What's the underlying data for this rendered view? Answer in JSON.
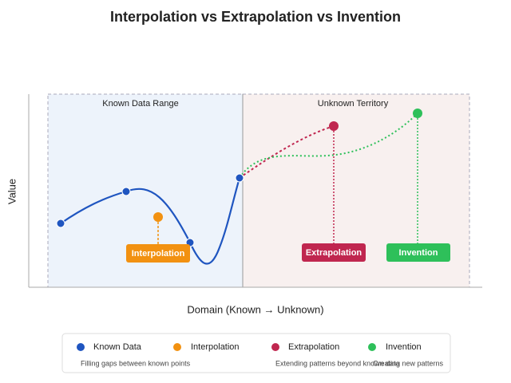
{
  "title": "Interpolation vs Extrapolation vs Invention",
  "regions": {
    "known": "Known Data Range",
    "unknown": "Unknown Territory"
  },
  "axes": {
    "y": "Value",
    "x": "Domain (Known → Unknown)"
  },
  "callouts": [
    "Interpolation",
    "Extrapolation",
    "Invention"
  ],
  "legend": {
    "items": [
      "Known Data",
      "Interpolation",
      "Extrapolation",
      "Invention"
    ],
    "notes": [
      "Filling gaps between known points",
      "Extending patterns beyond known data",
      "Creating new patterns"
    ]
  }
}
